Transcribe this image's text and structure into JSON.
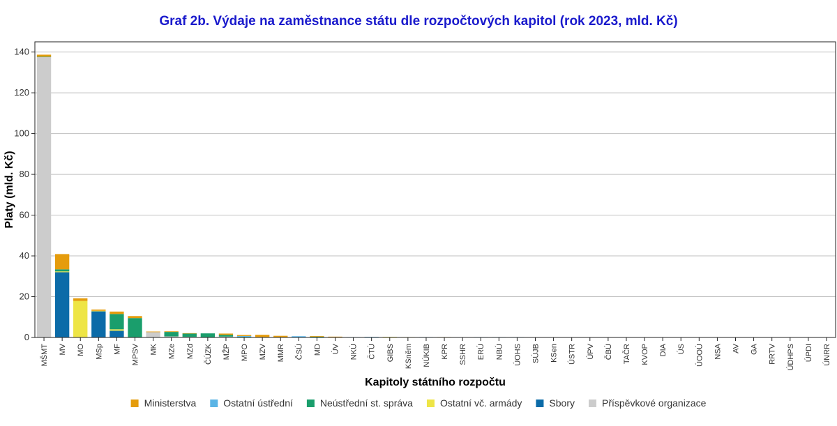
{
  "chart_data": {
    "type": "bar",
    "stacked": true,
    "title": "Graf 2b. Výdaje na zaměstnance státu dle rozpočtových kapitol (rok 2023, mld. Kč)",
    "xlabel": "Kapitoly státního rozpočtu",
    "ylabel": "Platy (mld. Kč)",
    "ylim": [
      0,
      145
    ],
    "yticks": [
      0,
      20,
      40,
      60,
      80,
      100,
      120,
      140
    ],
    "grid": true,
    "legend_position": "bottom",
    "categories": [
      "MŠMT",
      "MV",
      "MO",
      "MSp",
      "MF",
      "MPSV",
      "MK",
      "MZe",
      "MZd",
      "ČÚZK",
      "MŽP",
      "MPO",
      "MZV",
      "MMR",
      "ČSÚ",
      "MD",
      "ÚV",
      "NKÚ",
      "ČTÚ",
      "GIBS",
      "KSněm",
      "NÚKIB",
      "KPR",
      "SSHR",
      "ERÚ",
      "NBÚ",
      "ÚOHS",
      "SÚJB",
      "KSen",
      "ÚSTR",
      "ÚPV",
      "ČBÚ",
      "TAČR",
      "KVOP",
      "DIA",
      "ÚS",
      "ÚOOÚ",
      "NSA",
      "AV",
      "GA",
      "RRTV",
      "ÚDHPS",
      "ÚPDI",
      "ÚNRR"
    ],
    "series": [
      {
        "name": "Příspěvkové organizace",
        "color": "#cccccc",
        "values": [
          137.6,
          0,
          0,
          0,
          0,
          0,
          2.6,
          0.5,
          0.3,
          0,
          0.4,
          0.2,
          0,
          0.1,
          0,
          0.1,
          0,
          0,
          0,
          0,
          0,
          0,
          0,
          0,
          0,
          0,
          0,
          0,
          0,
          0,
          0,
          0,
          0,
          0,
          0,
          0,
          0,
          0,
          0,
          0,
          0,
          0,
          0,
          0
        ]
      },
      {
        "name": "Sbory",
        "color": "#0b6ba8",
        "values": [
          0,
          32.0,
          0,
          12.8,
          3.3,
          0,
          0,
          0,
          0,
          0,
          0,
          0,
          0,
          0,
          0,
          0,
          0,
          0,
          0,
          0,
          0,
          0,
          0,
          0,
          0,
          0,
          0,
          0,
          0,
          0,
          0,
          0,
          0,
          0,
          0,
          0,
          0,
          0,
          0,
          0,
          0,
          0,
          0,
          0
        ]
      },
      {
        "name": "Ostatní vč. armády",
        "color": "#eee546",
        "values": [
          0,
          0.4,
          17.9,
          0.3,
          0.7,
          0,
          0,
          0,
          0,
          0,
          0,
          0,
          0,
          0,
          0,
          0,
          0,
          0,
          0,
          0.3,
          0.2,
          0,
          0,
          0,
          0,
          0,
          0,
          0,
          0,
          0,
          0,
          0,
          0,
          0,
          0,
          0,
          0,
          0,
          0,
          0,
          0,
          0,
          0,
          0
        ]
      },
      {
        "name": "Neústřední st. správa",
        "color": "#1a9e6c",
        "values": [
          0.1,
          1.0,
          0,
          0,
          7.5,
          9.5,
          0,
          2.2,
          1.6,
          2.0,
          0.9,
          0.2,
          0.2,
          0.1,
          0,
          0.3,
          0,
          0,
          0,
          0,
          0,
          0,
          0,
          0,
          0,
          0,
          0,
          0,
          0,
          0,
          0,
          0,
          0,
          0,
          0,
          0,
          0,
          0,
          0,
          0,
          0,
          0,
          0,
          0
        ]
      },
      {
        "name": "Ostatní ústřední",
        "color": "#5ab4e5",
        "values": [
          0,
          0,
          0,
          0,
          0,
          0,
          0,
          0,
          0,
          0,
          0,
          0.3,
          0,
          0,
          0.6,
          0,
          0.2,
          0.2,
          0.3,
          0,
          0,
          0.2,
          0,
          0.1,
          0.2,
          0.2,
          0.2,
          0.1,
          0.1,
          0.1,
          0.1,
          0.1,
          0.1,
          0.1,
          0.1,
          0.1,
          0.1,
          0.1,
          0.05,
          0.05,
          0.05,
          0.05,
          0.05,
          0.05
        ]
      },
      {
        "name": "Ministerstva",
        "color": "#e59c0c",
        "values": [
          1.0,
          7.5,
          1.3,
          0.6,
          1.2,
          1.0,
          0.3,
          0.3,
          0.2,
          0,
          0.6,
          0.5,
          1.1,
          0.6,
          0,
          0.3,
          0.2,
          0,
          0,
          0,
          0,
          0,
          0.2,
          0,
          0,
          0,
          0,
          0,
          0,
          0,
          0,
          0,
          0,
          0,
          0,
          0,
          0,
          0,
          0,
          0,
          0,
          0,
          0,
          0
        ]
      }
    ],
    "legend_order": [
      "Ministerstva",
      "Ostatní ústřední",
      "Neústřední st. správa",
      "Ostatní vč. armády",
      "Sbory",
      "Příspěvkové organizace"
    ]
  }
}
